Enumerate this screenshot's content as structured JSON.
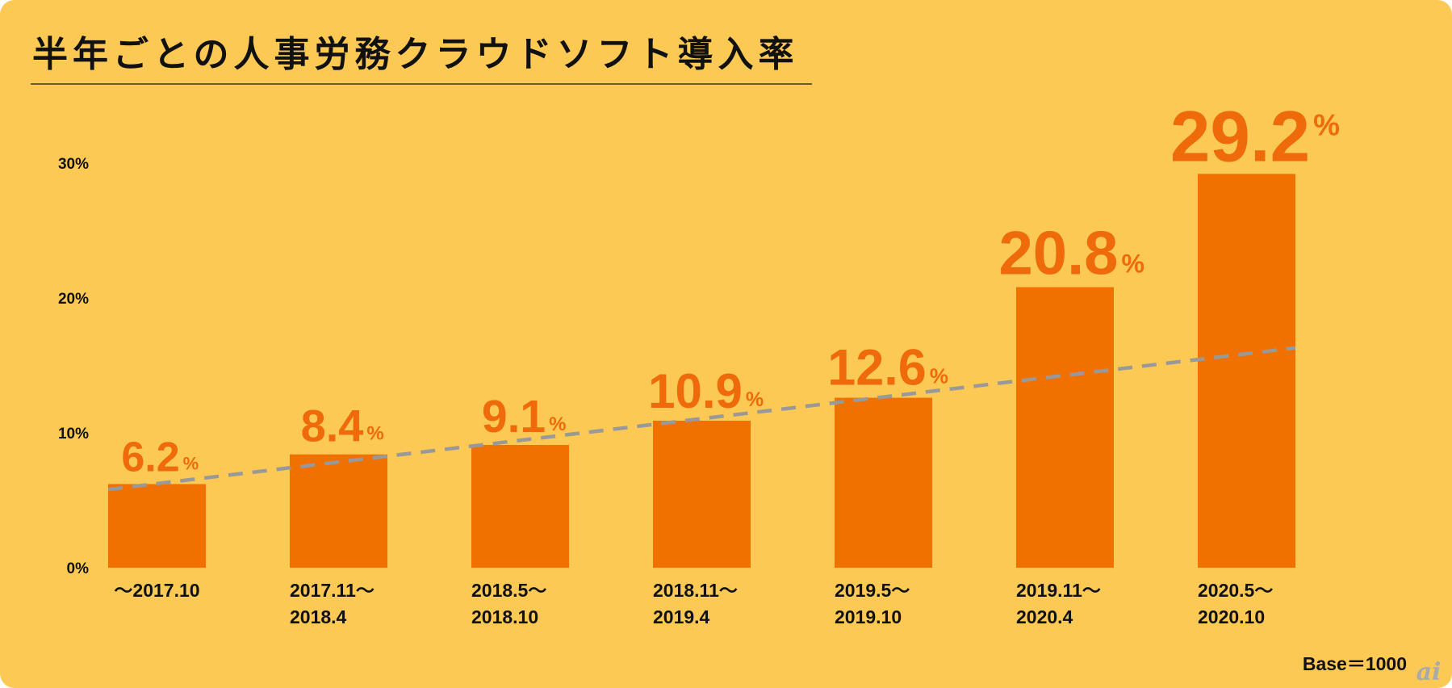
{
  "chart_data": {
    "type": "bar",
    "title": "半年ごとの人事労務クラウドソフト導入率",
    "categories": [
      [
        "〜2017.10"
      ],
      [
        "2017.11〜",
        "2018.4"
      ],
      [
        "2018.5〜",
        "2018.10"
      ],
      [
        "2018.11〜",
        "2019.4"
      ],
      [
        "2019.5〜",
        "2019.10"
      ],
      [
        "2019.11〜",
        "2020.4"
      ],
      [
        "2020.5〜",
        "2020.10"
      ]
    ],
    "values": [
      6.2,
      8.4,
      9.1,
      10.9,
      12.6,
      20.8,
      29.2
    ],
    "value_labels": [
      "6.2",
      "8.4",
      "9.1",
      "10.9",
      "12.6",
      "20.8",
      "29.2"
    ],
    "value_suffix": "%",
    "trendline": {
      "style": "dashed",
      "start": 5.8,
      "end": 16.3,
      "color": "#999999"
    },
    "yticks": [
      "0%",
      "10%",
      "20%",
      "30%"
    ],
    "ytick_values": [
      0,
      10,
      20,
      30
    ],
    "ylim": [
      0,
      30
    ],
    "grid": false,
    "xlabel": "",
    "ylabel": "",
    "note": "Base＝1000",
    "colors": {
      "bar": "#F07000",
      "label": "#EE6A0A",
      "background": "#FCC955"
    }
  },
  "logo_text": "ai"
}
